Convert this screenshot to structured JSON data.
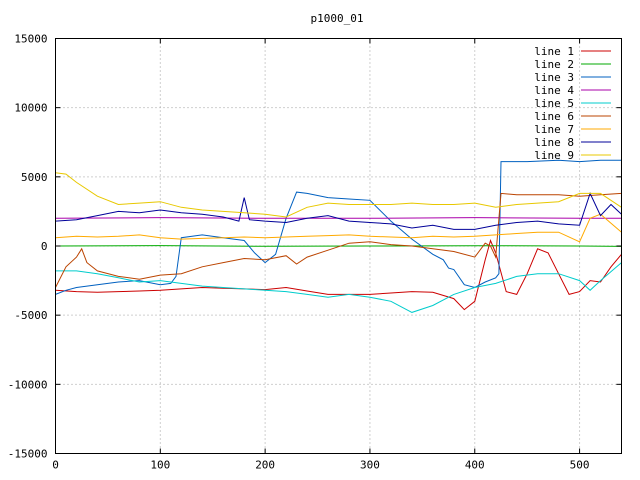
{
  "chart_data": {
    "type": "line",
    "title": "p1000_01",
    "xlabel": "",
    "ylabel": "",
    "xlim": [
      0,
      540
    ],
    "ylim": [
      -15000,
      15000
    ],
    "xticks": [
      0,
      100,
      200,
      300,
      400,
      500
    ],
    "xtick_labels": [
      "0",
      "100",
      "200",
      "300",
      "400",
      "500"
    ],
    "yticks": [
      -15000,
      -10000,
      -5000,
      0,
      5000,
      10000,
      15000
    ],
    "ytick_labels": [
      "-15000",
      "-10000",
      "-5000",
      "0",
      "5000",
      "10000",
      "15000"
    ],
    "grid": true,
    "legend_position": "top-right",
    "series": [
      {
        "name": "line 1",
        "color": "#cc0000",
        "x": [
          0,
          20,
          40,
          60,
          80,
          100,
          120,
          140,
          160,
          180,
          200,
          220,
          240,
          260,
          280,
          300,
          320,
          340,
          360,
          380,
          390,
          400,
          410,
          415,
          420,
          430,
          440,
          450,
          460,
          470,
          480,
          490,
          500,
          510,
          520,
          530,
          540
        ],
        "y": [
          -3200,
          -3300,
          -3350,
          -3300,
          -3250,
          -3200,
          -3100,
          -3000,
          -3050,
          -3100,
          -3150,
          -3000,
          -3250,
          -3500,
          -3500,
          -3500,
          -3400,
          -3300,
          -3350,
          -3800,
          -4600,
          -4000,
          -1000,
          400,
          -500,
          -3300,
          -3500,
          -2000,
          -200,
          -500,
          -2000,
          -3500,
          -3300,
          -2500,
          -2600,
          -1500,
          -600
        ]
      },
      {
        "name": "line 2",
        "color": "#00aa00",
        "x": [
          0,
          100,
          200,
          300,
          400,
          500,
          540
        ],
        "y": [
          0,
          30,
          -20,
          0,
          20,
          0,
          -30
        ]
      },
      {
        "name": "line 3",
        "color": "#0060c0",
        "x": [
          0,
          10,
          20,
          40,
          60,
          80,
          100,
          110,
          115,
          120,
          140,
          160,
          180,
          190,
          200,
          210,
          220,
          230,
          240,
          260,
          280,
          300,
          320,
          340,
          360,
          370,
          375,
          380,
          390,
          400,
          410,
          420,
          423,
          425,
          450,
          480,
          500,
          520,
          540
        ],
        "y": [
          -3500,
          -3200,
          -3000,
          -2800,
          -2600,
          -2500,
          -2800,
          -2700,
          -2200,
          600,
          800,
          600,
          400,
          -500,
          -1200,
          -600,
          2000,
          3900,
          3800,
          3500,
          3400,
          3300,
          1800,
          500,
          -600,
          -1000,
          -1600,
          -1700,
          -2800,
          -3000,
          -2600,
          -2300,
          -2000,
          6100,
          6100,
          6200,
          6100,
          6200,
          6200
        ]
      },
      {
        "name": "line 4",
        "color": "#aa00aa",
        "x": [
          0,
          100,
          200,
          300,
          400,
          500,
          540
        ],
        "y": [
          2000,
          2050,
          2000,
          2000,
          2050,
          2000,
          2000
        ]
      },
      {
        "name": "line 5",
        "color": "#00cccc",
        "x": [
          0,
          20,
          40,
          60,
          80,
          100,
          120,
          140,
          160,
          180,
          200,
          220,
          240,
          260,
          280,
          300,
          320,
          340,
          360,
          380,
          400,
          420,
          440,
          460,
          480,
          500,
          510,
          520,
          540
        ],
        "y": [
          -1800,
          -1800,
          -2000,
          -2300,
          -2600,
          -2500,
          -2700,
          -2900,
          -3000,
          -3100,
          -3200,
          -3300,
          -3500,
          -3700,
          -3500,
          -3700,
          -4000,
          -4800,
          -4300,
          -3500,
          -3000,
          -2700,
          -2200,
          -2000,
          -2000,
          -2500,
          -3200,
          -2500,
          -1200
        ]
      },
      {
        "name": "line 6",
        "color": "#bb4400",
        "x": [
          0,
          10,
          20,
          25,
          30,
          40,
          60,
          80,
          100,
          120,
          140,
          160,
          180,
          200,
          220,
          230,
          240,
          260,
          280,
          300,
          320,
          340,
          360,
          380,
          400,
          410,
          415,
          420,
          425,
          440,
          460,
          480,
          500,
          520,
          540
        ],
        "y": [
          -3000,
          -1500,
          -800,
          -200,
          -1200,
          -1800,
          -2200,
          -2400,
          -2100,
          -2000,
          -1500,
          -1200,
          -900,
          -1000,
          -700,
          -1300,
          -800,
          -300,
          200,
          300,
          100,
          0,
          -200,
          -400,
          -800,
          200,
          0,
          -800,
          3800,
          3700,
          3700,
          3700,
          3600,
          3700,
          3800
        ]
      },
      {
        "name": "line 7",
        "color": "#ffaa00",
        "x": [
          0,
          20,
          40,
          60,
          80,
          100,
          120,
          140,
          160,
          180,
          200,
          220,
          240,
          260,
          280,
          300,
          320,
          340,
          360,
          380,
          400,
          420,
          440,
          460,
          480,
          500,
          510,
          520,
          540
        ],
        "y": [
          600,
          700,
          650,
          700,
          800,
          600,
          500,
          550,
          600,
          650,
          600,
          650,
          700,
          750,
          800,
          700,
          650,
          600,
          700,
          650,
          700,
          800,
          900,
          1000,
          1000,
          300,
          2000,
          2300,
          1000
        ]
      },
      {
        "name": "line 8",
        "color": "#000099",
        "x": [
          0,
          20,
          40,
          60,
          80,
          100,
          120,
          140,
          160,
          175,
          180,
          185,
          200,
          220,
          240,
          260,
          280,
          300,
          320,
          340,
          360,
          380,
          400,
          420,
          440,
          460,
          480,
          500,
          510,
          520,
          530,
          540
        ],
        "y": [
          1800,
          1900,
          2200,
          2500,
          2400,
          2600,
          2400,
          2300,
          2100,
          1800,
          3500,
          1900,
          1800,
          1700,
          2000,
          2200,
          1800,
          1700,
          1600,
          1300,
          1500,
          1200,
          1200,
          1500,
          1700,
          1800,
          1600,
          1500,
          3800,
          2200,
          3000,
          2300
        ]
      },
      {
        "name": "line 9",
        "color": "#e8c800",
        "x": [
          0,
          10,
          20,
          40,
          60,
          80,
          100,
          120,
          140,
          160,
          180,
          200,
          220,
          240,
          260,
          280,
          300,
          320,
          340,
          360,
          380,
          400,
          420,
          440,
          460,
          480,
          500,
          520,
          540
        ],
        "y": [
          5300,
          5200,
          4600,
          3600,
          3000,
          3100,
          3200,
          2800,
          2600,
          2500,
          2400,
          2300,
          2100,
          2800,
          3100,
          3000,
          3000,
          3000,
          3100,
          3000,
          3000,
          3100,
          2800,
          3000,
          3100,
          3200,
          3800,
          3800,
          2800
        ]
      }
    ]
  }
}
